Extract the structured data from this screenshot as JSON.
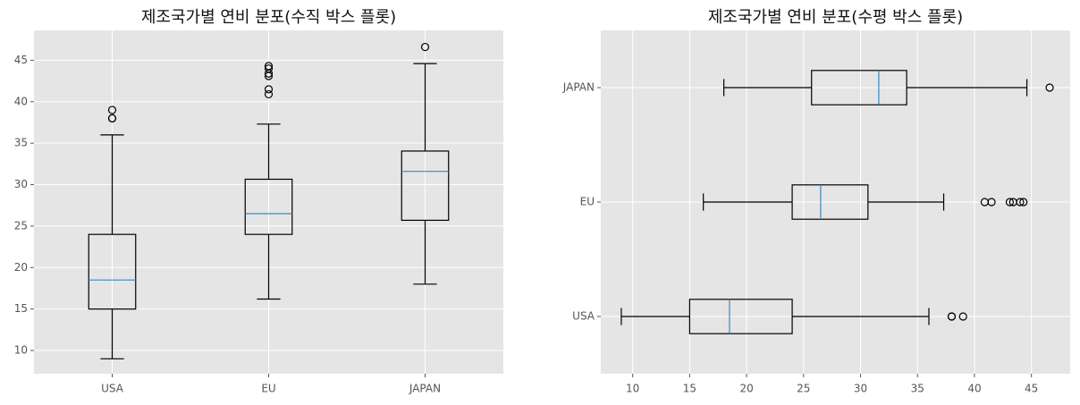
{
  "chart_data": [
    {
      "type": "box",
      "orientation": "vertical",
      "title": "제조국가별 연비 분포(수직 박스 플롯)",
      "categories": [
        "USA",
        "EU",
        "JAPAN"
      ],
      "boxes": [
        {
          "whislo": 9,
          "q1": 15,
          "med": 18.5,
          "q3": 24,
          "whishi": 36,
          "fliers": [
            38,
            38,
            39
          ]
        },
        {
          "whislo": 16.2,
          "q1": 24,
          "med": 26.5,
          "q3": 30.65,
          "whishi": 37.3,
          "fliers": [
            40.9,
            41.5,
            43.1,
            43.4,
            44.0,
            44.3
          ]
        },
        {
          "whislo": 18,
          "q1": 25.7,
          "med": 31.6,
          "q3": 34.05,
          "whishi": 44.6,
          "fliers": [
            46.6
          ]
        }
      ],
      "box_color": "#000000",
      "median_color": "#3a87c0",
      "ylim": [
        7.2,
        48.6
      ],
      "yticks": [
        10,
        15,
        20,
        25,
        30,
        35,
        40,
        45
      ],
      "grid": true
    },
    {
      "type": "box",
      "orientation": "horizontal",
      "title": "제조국가별 연비 분포(수평 박스 플롯)",
      "categories": [
        "USA",
        "EU",
        "JAPAN"
      ],
      "boxes": [
        {
          "whislo": 9,
          "q1": 15,
          "med": 18.5,
          "q3": 24,
          "whishi": 36,
          "fliers": [
            38,
            38,
            39
          ]
        },
        {
          "whislo": 16.2,
          "q1": 24,
          "med": 26.5,
          "q3": 30.65,
          "whishi": 37.3,
          "fliers": [
            40.9,
            41.5,
            43.1,
            43.4,
            44.0,
            44.3
          ]
        },
        {
          "whislo": 18,
          "q1": 25.7,
          "med": 31.6,
          "q3": 34.05,
          "whishi": 44.6,
          "fliers": [
            46.6
          ]
        }
      ],
      "box_color": "#000000",
      "median_color": "#3a87c0",
      "xlim": [
        7.2,
        48.4
      ],
      "xticks": [
        10,
        15,
        20,
        25,
        30,
        35,
        40,
        45
      ],
      "grid": true
    }
  ]
}
